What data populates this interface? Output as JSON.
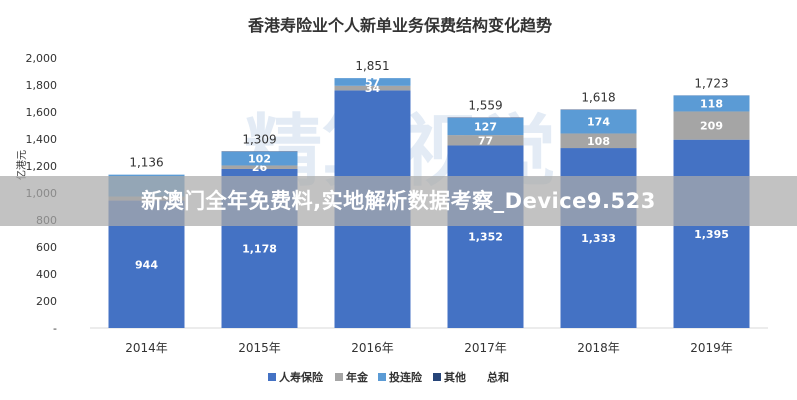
{
  "chart_data": {
    "type": "bar",
    "stacked": true,
    "title": "香港寿险业个人新单业务保费结构变化趋势",
    "ylabel": "亿港元",
    "ylim": [
      0,
      2000
    ],
    "y_ticks": [
      0,
      200,
      400,
      600,
      800,
      1000,
      1200,
      1400,
      1600,
      1800,
      2000
    ],
    "y_tick_labels": [
      "-",
      "200",
      "400",
      "600",
      "800",
      "1,000",
      "1,200",
      "1,400",
      "1,600",
      "1,800",
      "2,000"
    ],
    "categories": [
      "2014年",
      "2015年",
      "2016年",
      "2017年",
      "2018年",
      "2019年"
    ],
    "series": [
      {
        "name": "人寿保险",
        "color": "#4472c4",
        "values": [
          944,
          1178,
          1760,
          1352,
          1333,
          1395
        ],
        "labels": [
          "944",
          "1,178",
          "",
          "1,352",
          "1,333",
          "1,395"
        ]
      },
      {
        "name": "年金",
        "color": "#a5a5a5",
        "values": [
          30,
          26,
          34,
          77,
          108,
          209
        ],
        "labels": [
          "",
          "26",
          "34",
          "77",
          "108",
          "209"
        ]
      },
      {
        "name": "投连险",
        "color": "#5b9bd5",
        "values": [
          162,
          102,
          57,
          127,
          174,
          118
        ],
        "labels": [
          "",
          "102",
          "57",
          "127",
          "174",
          "118"
        ]
      },
      {
        "name": "其他",
        "color": "#264478",
        "values": [
          0,
          3,
          0,
          3,
          3,
          1
        ],
        "labels": [
          "",
          "",
          "",
          "",
          "",
          ""
        ]
      }
    ],
    "totals": {
      "name": "总和",
      "values": [
        1136,
        1309,
        1851,
        1559,
        1618,
        1723
      ],
      "labels": [
        "1,136",
        "1,309",
        "1,851",
        "1,559",
        "1,618",
        "1,723"
      ]
    },
    "legend_position": "bottom",
    "grid": false
  },
  "watermark": {
    "logo_text": "精算视觉",
    "banner_text": "新澳门全年免费料,实地解析数据考察_Device9.523"
  }
}
